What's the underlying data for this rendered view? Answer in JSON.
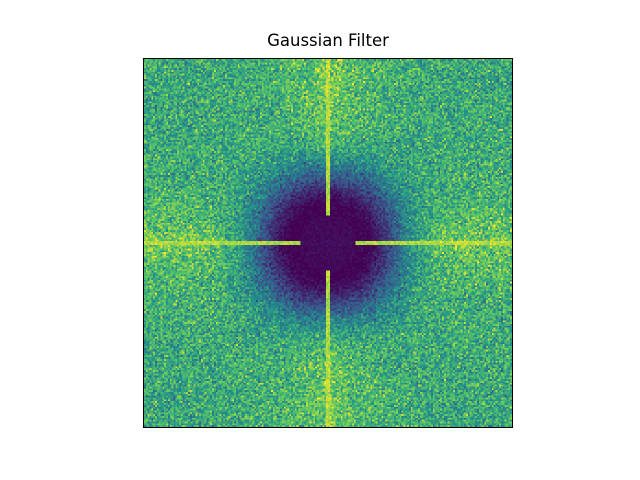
{
  "chart_data": {
    "type": "heatmap",
    "title": "Gaussian Filter",
    "xlabel": "",
    "ylabel": "",
    "colormap": "viridis",
    "colormap_stops": [
      "#440154",
      "#3b528b",
      "#21918c",
      "#5ec962",
      "#fde725"
    ],
    "axis_ticks": "none",
    "grid": false,
    "description_values": {
      "grid_resolution": 200,
      "center_value": 0.0,
      "outer_value_mean": 0.6,
      "axis_line_value": 0.95,
      "low_region_radius_fraction": 0.09,
      "transition_radius_fraction": 0.25
    }
  }
}
